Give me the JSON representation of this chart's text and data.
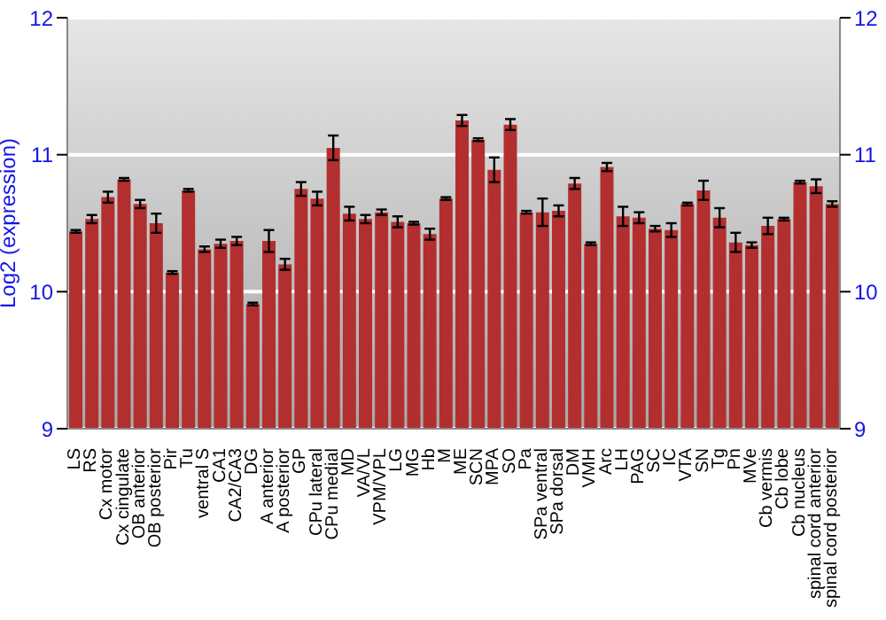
{
  "chart_data": {
    "type": "bar",
    "ylabel": "Log2 (expression)",
    "categories": [
      "LS",
      "RS",
      "Cx motor",
      "Cx cingulate",
      "OB anterior",
      "OB posterior",
      "Pir",
      "Tu",
      "ventral S",
      "CA1",
      "CA2/CA3",
      "DG",
      "A anterior",
      "A posterior",
      "GP",
      "CPu lateral",
      "CPu medial",
      "MD",
      "VA/VL",
      "VPM/VPL",
      "LG",
      "MG",
      "Hb",
      "M",
      "ME",
      "SCN",
      "MPA",
      "SO",
      "Pa",
      "SPa ventral",
      "SPa dorsal",
      "DM",
      "VMH",
      "Arc",
      "LH",
      "PAG",
      "SC",
      "IC",
      "VTA",
      "SN",
      "Tg",
      "Pn",
      "MVe",
      "Cb vermis",
      "Cb lobe",
      "Cb nucleus",
      "spinal cord anterior",
      "spinal cord posterior"
    ],
    "values": [
      10.44,
      10.53,
      10.69,
      10.82,
      10.64,
      10.5,
      10.14,
      10.74,
      10.31,
      10.35,
      10.37,
      9.91,
      10.37,
      10.2,
      10.75,
      10.68,
      11.05,
      10.57,
      10.53,
      10.58,
      10.51,
      10.5,
      10.42,
      10.68,
      11.25,
      11.11,
      10.89,
      11.22,
      10.58,
      10.58,
      10.59,
      10.79,
      10.35,
      10.91,
      10.55,
      10.54,
      10.46,
      10.45,
      10.64,
      10.74,
      10.54,
      10.36,
      10.34,
      10.48,
      10.53,
      10.8,
      10.77,
      10.64
    ],
    "errors": [
      0.01,
      0.03,
      0.04,
      0.01,
      0.03,
      0.07,
      0.01,
      0.01,
      0.02,
      0.03,
      0.03,
      0.01,
      0.08,
      0.04,
      0.05,
      0.05,
      0.09,
      0.05,
      0.03,
      0.02,
      0.04,
      0.01,
      0.04,
      0.01,
      0.04,
      0.01,
      0.09,
      0.04,
      0.01,
      0.1,
      0.04,
      0.04,
      0.01,
      0.03,
      0.07,
      0.04,
      0.02,
      0.05,
      0.01,
      0.07,
      0.07,
      0.07,
      0.02,
      0.06,
      0.01,
      0.01,
      0.05,
      0.02
    ],
    "color": "#b32f2f",
    "ylim": [
      9,
      12
    ],
    "yticks": [
      9,
      10,
      11,
      12
    ],
    "y2lim": [
      9,
      12
    ],
    "y2ticks": [
      9,
      10,
      11,
      12
    ],
    "grid": "y"
  }
}
